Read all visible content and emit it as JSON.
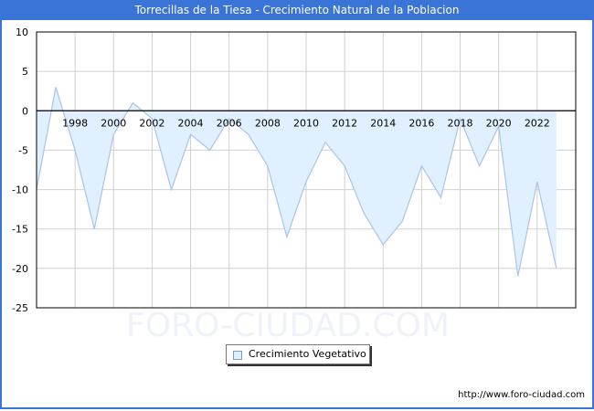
{
  "header": {
    "title": "Torrecillas de la Tiesa - Crecimiento Natural de la Poblacion"
  },
  "legend": {
    "label": "Crecimiento Vegetativo",
    "swatch_color": "#e0f0ff",
    "line_color": "#a8c4ec"
  },
  "watermark": "FORO-CIUDAD.COM",
  "footer": {
    "url": "http://www.foro-ciudad.com"
  },
  "colors": {
    "title_bar": "#3a74d6",
    "fill": "#e0f0ff",
    "line": "#a8c4ec",
    "grid": "#d0d0d0"
  },
  "chart_data": {
    "type": "area",
    "title": "Torrecillas de la Tiesa - Crecimiento Natural de la Poblacion",
    "xlabel": "",
    "ylabel": "",
    "ylim": [
      -25,
      10
    ],
    "yticks": [
      10,
      5,
      0,
      -5,
      -10,
      -15,
      -20,
      -25
    ],
    "xtick_labels": [
      "1998",
      "2000",
      "2002",
      "2004",
      "2006",
      "2008",
      "2010",
      "2012",
      "2014",
      "2016",
      "2018",
      "2020",
      "2022"
    ],
    "grid": true,
    "legend_position": "bottom",
    "x": [
      1996,
      1997,
      1998,
      1999,
      2000,
      2001,
      2002,
      2003,
      2004,
      2005,
      2006,
      2007,
      2008,
      2009,
      2010,
      2011,
      2012,
      2013,
      2014,
      2015,
      2016,
      2017,
      2018,
      2019,
      2020,
      2021,
      2022,
      2023
    ],
    "series": [
      {
        "name": "Crecimiento Vegetativo",
        "values": [
          -10,
          3,
          -5,
          -15,
          -3,
          1,
          -1,
          -10,
          -3,
          -5,
          -1,
          -3,
          -7,
          -16,
          -9,
          -4,
          -7,
          -13,
          -17,
          -14,
          -7,
          -11,
          -1,
          -7,
          -2,
          -21,
          -9,
          -20
        ]
      }
    ]
  }
}
